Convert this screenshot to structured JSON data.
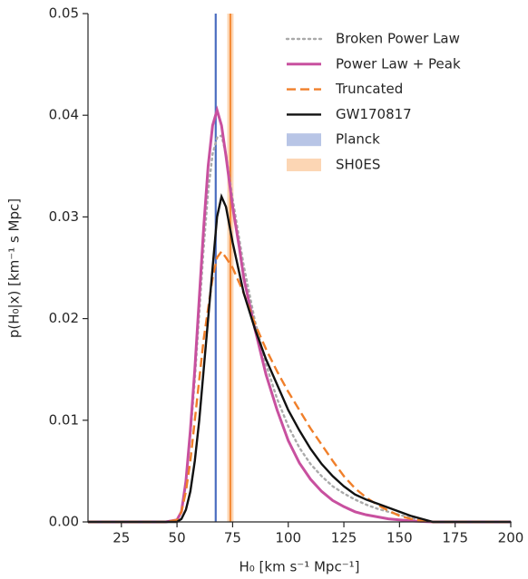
{
  "chart_data": {
    "type": "line",
    "x_label": "H₀ [km s⁻¹ Mpc⁻¹]",
    "y_label": "p(H₀|x) [km⁻¹ s Mpc]",
    "xlim": [
      10,
      200
    ],
    "ylim": [
      0,
      0.05
    ],
    "xticks": [
      25,
      50,
      75,
      100,
      125,
      150,
      175,
      200
    ],
    "yticks": [
      {
        "value": 0,
        "label": "0.00"
      },
      0.01,
      0.02,
      0.03,
      0.04,
      0.05
    ],
    "legend": "upper right",
    "x": [
      10,
      20,
      30,
      40,
      45,
      50,
      52,
      54,
      56,
      58,
      60,
      62,
      64,
      66,
      68,
      70,
      72,
      75,
      78,
      80,
      85,
      90,
      95,
      100,
      105,
      110,
      115,
      120,
      125,
      130,
      135,
      140,
      145,
      150,
      155,
      160,
      165,
      170,
      180,
      190,
      200
    ],
    "series": [
      {
        "name": "Broken Power Law",
        "color": "#aaaaaa",
        "dash": "dotted",
        "values": [
          0,
          0,
          0,
          0,
          0,
          0.0002,
          0.001,
          0.0037,
          0.0085,
          0.014,
          0.0205,
          0.027,
          0.0325,
          0.0362,
          0.0378,
          0.038,
          0.0362,
          0.0318,
          0.0278,
          0.0252,
          0.0198,
          0.0155,
          0.0121,
          0.0094,
          0.0073,
          0.0057,
          0.0045,
          0.0035,
          0.0028,
          0.0022,
          0.0017,
          0.0013,
          0.001,
          0.0007,
          0.0004,
          0.0002,
          0,
          0,
          0,
          0,
          0
        ]
      },
      {
        "name": "Power Law + Peak",
        "color": "#c8509f",
        "dash": "solid",
        "values": [
          0,
          0,
          0,
          0,
          0,
          0.0002,
          0.001,
          0.004,
          0.009,
          0.015,
          0.022,
          0.029,
          0.035,
          0.039,
          0.0405,
          0.039,
          0.036,
          0.031,
          0.027,
          0.024,
          0.019,
          0.0145,
          0.011,
          0.008,
          0.0058,
          0.0042,
          0.003,
          0.0021,
          0.0015,
          0.001,
          0.0007,
          0.0005,
          0.0003,
          0.0002,
          0.0001,
          5e-05,
          0,
          0,
          0,
          0,
          0
        ]
      },
      {
        "name": "Truncated",
        "color": "#f07f2a",
        "dash": "dashed",
        "values": [
          0,
          0,
          0,
          0,
          0,
          0.0002,
          0.001,
          0.003,
          0.006,
          0.01,
          0.014,
          0.018,
          0.021,
          0.024,
          0.026,
          0.0266,
          0.026,
          0.025,
          0.0235,
          0.0225,
          0.0195,
          0.017,
          0.0148,
          0.0128,
          0.011,
          0.0092,
          0.0076,
          0.006,
          0.0045,
          0.0033,
          0.0024,
          0.0017,
          0.0011,
          0.0006,
          0.0003,
          0.0001,
          0,
          0,
          0,
          0,
          0
        ]
      },
      {
        "name": "GW170817",
        "color": "#111111",
        "dash": "solid",
        "values": [
          0,
          0,
          0,
          0,
          0,
          0,
          0.0003,
          0.0012,
          0.003,
          0.006,
          0.01,
          0.015,
          0.02,
          0.025,
          0.03,
          0.032,
          0.031,
          0.0275,
          0.0245,
          0.0225,
          0.019,
          0.016,
          0.0135,
          0.011,
          0.009,
          0.0072,
          0.0057,
          0.0045,
          0.0035,
          0.0027,
          0.0022,
          0.0018,
          0.0014,
          0.001,
          0.0006,
          0.0003,
          0,
          0,
          0,
          0,
          0
        ]
      }
    ],
    "bands": [
      {
        "name": "Planck",
        "color": "#b8c5e6",
        "line_color": "#4a6cc0",
        "x": 67.4,
        "xrange": [
          66.9,
          67.9
        ]
      },
      {
        "name": "SH0ES",
        "color": "#fcd6b4",
        "line_color": "#f58a36",
        "x": 74.0,
        "xrange": [
          72.6,
          75.4
        ]
      }
    ]
  }
}
